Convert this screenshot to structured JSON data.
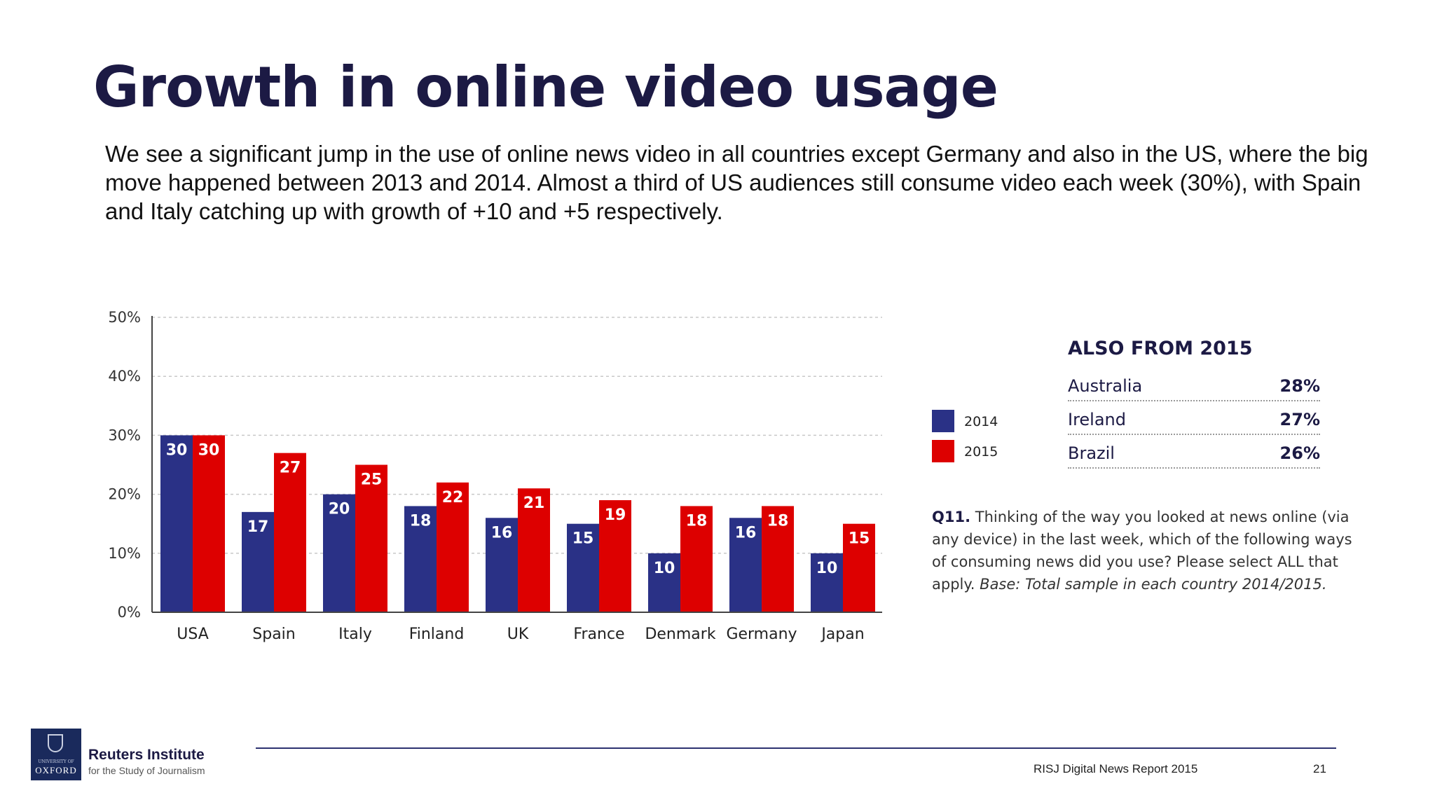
{
  "slide": {
    "title": "Growth in online video usage",
    "intro": "We see a significant jump in the use of online news video in all countries except Germany and also in the US, where the big move happened between 2013 and 2014. Almost a third of US audiences still consume video each week (30%), with Spain and Italy catching up with growth of +10 and +5 respectively."
  },
  "chart_data": {
    "type": "bar",
    "categories": [
      "USA",
      "Spain",
      "Italy",
      "Finland",
      "UK",
      "France",
      "Denmark",
      "Germany",
      "Japan"
    ],
    "series": [
      {
        "name": "2014",
        "color": "#2a3186",
        "values": [
          30,
          17,
          20,
          18,
          16,
          15,
          10,
          16,
          10
        ]
      },
      {
        "name": "2015",
        "color": "#dd0000",
        "values": [
          30,
          27,
          25,
          22,
          21,
          19,
          18,
          18,
          15
        ]
      }
    ],
    "y_ticks": [
      "0%",
      "10%",
      "20%",
      "30%",
      "40%",
      "50%"
    ],
    "ylim": [
      0,
      50
    ],
    "grid": true,
    "legend_position": "right"
  },
  "also_from": {
    "title": "ALSO FROM 2015",
    "rows": [
      {
        "country": "Australia",
        "value": "28%"
      },
      {
        "country": "Ireland",
        "value": "27%"
      },
      {
        "country": "Brazil",
        "value": "26%"
      }
    ]
  },
  "footnote": {
    "q_label": "Q11.",
    "question": " Thinking of the way you looked at news online (via any device) in the last week, which of the following ways of consuming news did you use? Please select ALL that apply.",
    "base": " Base: Total sample in each country 2014/2015."
  },
  "footer": {
    "source": "RISJ Digital News Report 2015",
    "page_number": "21",
    "org_name": "Reuters Institute",
    "org_sub": "for the Study of Journalism",
    "logo_university": "UNIVERSITY OF",
    "logo_name": "OXFORD"
  }
}
